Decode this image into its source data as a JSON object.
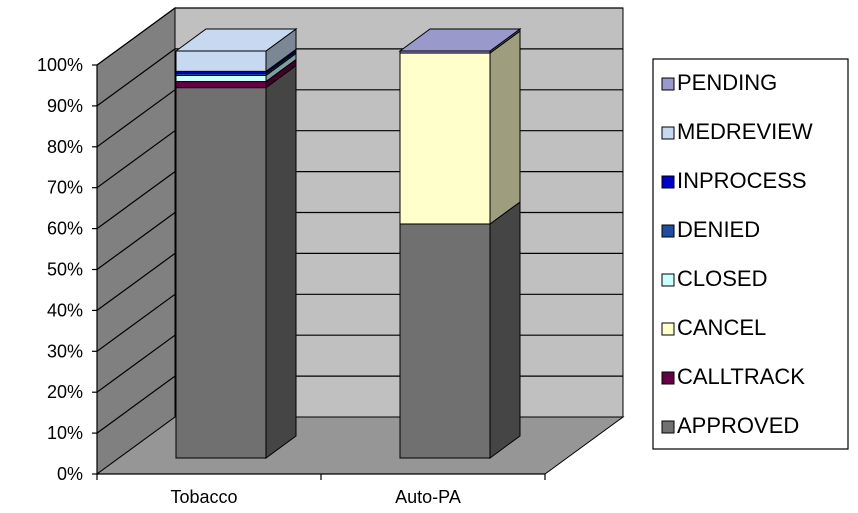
{
  "chart_data": {
    "type": "bar",
    "stacked": true,
    "percent_stacked": true,
    "three_d": true,
    "categories": [
      "Tobacco",
      "Auto-PA"
    ],
    "series": [
      {
        "name": "APPROVED",
        "color": "#707070",
        "values": [
          91,
          57.5
        ]
      },
      {
        "name": "CALLTRACK",
        "color": "#660044",
        "values": [
          1.5,
          0
        ]
      },
      {
        "name": "CANCEL",
        "color": "#FFFFCC",
        "values": [
          0,
          42
        ]
      },
      {
        "name": "CLOSED",
        "color": "#CCFFFF",
        "values": [
          1.5,
          0
        ]
      },
      {
        "name": "DENIED",
        "color": "#1F4E9E",
        "values": [
          0.5,
          0
        ]
      },
      {
        "name": "INPROCESS",
        "color": "#0000CC",
        "values": [
          0.5,
          0
        ]
      },
      {
        "name": "MEDREVIEW",
        "color": "#C6D9F1",
        "values": [
          5,
          0
        ]
      },
      {
        "name": "PENDING",
        "color": "#9999CC",
        "values": [
          0,
          0.5
        ]
      }
    ],
    "ylim": [
      0,
      100
    ],
    "yticks": [
      "0%",
      "10%",
      "20%",
      "30%",
      "40%",
      "50%",
      "60%",
      "70%",
      "80%",
      "90%",
      "100%"
    ],
    "grid": true,
    "legend_position": "right",
    "legend_order": [
      "PENDING",
      "MEDREVIEW",
      "INPROCESS",
      "DENIED",
      "CLOSED",
      "CANCEL",
      "CALLTRACK",
      "APPROVED"
    ],
    "title": "",
    "xlabel": "",
    "ylabel": ""
  },
  "colors": {
    "wall_back": "#C0C0C0",
    "wall_side": "#808080",
    "floor": "#969696",
    "gridline": "#000000"
  }
}
